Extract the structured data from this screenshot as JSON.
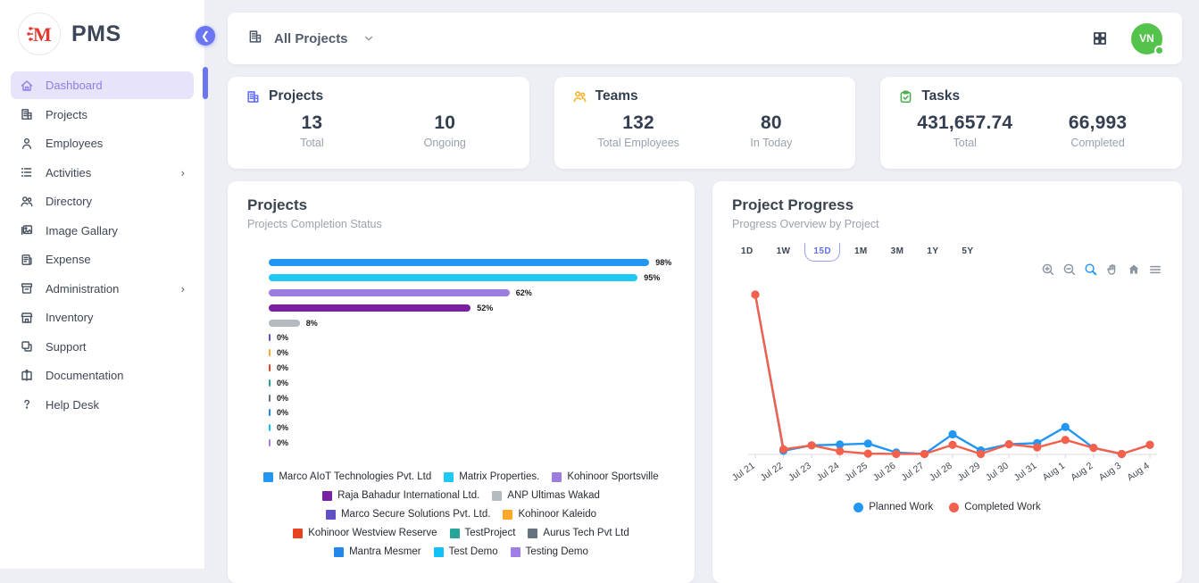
{
  "app": {
    "brand": "PMS"
  },
  "sidebar": {
    "items": [
      {
        "label": "Dashboard",
        "icon": "home",
        "active": true,
        "has_submenu": false
      },
      {
        "label": "Projects",
        "icon": "building",
        "active": false,
        "has_submenu": false
      },
      {
        "label": "Employees",
        "icon": "person",
        "active": false,
        "has_submenu": false
      },
      {
        "label": "Activities",
        "icon": "list",
        "active": false,
        "has_submenu": true
      },
      {
        "label": "Directory",
        "icon": "people",
        "active": false,
        "has_submenu": false
      },
      {
        "label": "Image Gallary",
        "icon": "image",
        "active": false,
        "has_submenu": false
      },
      {
        "label": "Expense",
        "icon": "receipt",
        "active": false,
        "has_submenu": false
      },
      {
        "label": "Administration",
        "icon": "archive",
        "active": false,
        "has_submenu": true
      },
      {
        "label": "Inventory",
        "icon": "store",
        "active": false,
        "has_submenu": false
      },
      {
        "label": "Support",
        "icon": "copy",
        "active": false,
        "has_submenu": false
      },
      {
        "label": "Documentation",
        "icon": "book",
        "active": false,
        "has_submenu": false
      },
      {
        "label": "Help Desk",
        "icon": "question",
        "active": false,
        "has_submenu": false
      }
    ]
  },
  "topbar": {
    "project_filter": "All Projects",
    "avatar_initials": "VN"
  },
  "stats": [
    {
      "title": "Projects",
      "icon": "building",
      "icon_color": "#6571ff",
      "metrics": [
        {
          "value": "13",
          "label": "Total"
        },
        {
          "value": "10",
          "label": "Ongoing"
        }
      ]
    },
    {
      "title": "Teams",
      "icon": "people",
      "icon_color": "#f7b32b",
      "metrics": [
        {
          "value": "132",
          "label": "Total Employees"
        },
        {
          "value": "80",
          "label": "In Today"
        }
      ]
    },
    {
      "title": "Tasks",
      "icon": "clipboard-check",
      "icon_color": "#4caf50",
      "metrics": [
        {
          "value": "431,657.74",
          "label": "Total"
        },
        {
          "value": "66,993",
          "label": "Completed"
        }
      ]
    }
  ],
  "projects_chart": {
    "title": "Projects",
    "subtitle": "Projects Completion Status"
  },
  "progress_chart": {
    "title": "Project Progress",
    "subtitle": "Progress Overview by Project",
    "range_buttons": [
      "1D",
      "1W",
      "15D",
      "1M",
      "3M",
      "1Y",
      "5Y"
    ],
    "active_range": "15D"
  },
  "chart_data": [
    {
      "type": "bar",
      "orientation": "horizontal",
      "title": "Projects",
      "subtitle": "Projects Completion Status",
      "categories": [
        "Marco AIoT Technologies Pvt. Ltd",
        "Matrix Properties.",
        "Kohinoor Sportsville",
        "Raja Bahadur International Ltd.",
        "ANP Ultimas Wakad",
        "Marco Secure Solutions Pvt. Ltd.",
        "Kohinoor Kaleido",
        "Kohinoor Westview Reserve",
        "TestProject",
        "Aurus Tech Pvt Ltd",
        "Mantra Mesmer",
        "Test Demo",
        "Testing Demo"
      ],
      "values": [
        98,
        95,
        62,
        52,
        8,
        0,
        0,
        0,
        0,
        0,
        0,
        0,
        0
      ],
      "value_suffix": "%",
      "colors": [
        "#2196f3",
        "#1fc8f5",
        "#9d7ce0",
        "#7b1fa2",
        "#b3bac0",
        "#5f50c8",
        "#ffa726",
        "#e8431f",
        "#26a69a",
        "#66737f",
        "#2187ec",
        "#12c2f6",
        "#a07ee6"
      ],
      "xlim": [
        0,
        100
      ],
      "legend_position": "bottom"
    },
    {
      "type": "line",
      "title": "Project Progress",
      "subtitle": "Progress Overview by Project",
      "x": [
        "Jul 21",
        "Jul 22",
        "Jul 23",
        "Jul 24",
        "Jul 25",
        "Jul 26",
        "Jul 27",
        "Jul 28",
        "Jul 29",
        "Jul 30",
        "Jul 31",
        "Aug 1",
        "Aug 2",
        "Aug 3",
        "Aug 4"
      ],
      "series": [
        {
          "name": "Planned Work",
          "color": "#2196f3",
          "values": [
            100,
            2.3,
            5.7,
            6.2,
            6.8,
            1.2,
            0.3,
            12.6,
            2.5,
            6.4,
            7.1,
            17.2,
            4.1,
            0.3,
            6
          ]
        },
        {
          "name": "Completed Work",
          "color": "#f4604c",
          "values": [
            100,
            3.2,
            5.7,
            2.0,
            0.5,
            0.3,
            0.3,
            6.0,
            0.3,
            6.4,
            4.4,
            9.1,
            4.1,
            0.3,
            6
          ]
        }
      ],
      "ylim": [
        0,
        105
      ],
      "grid": false,
      "x_tick_rotation": -35,
      "legend_position": "bottom"
    }
  ]
}
